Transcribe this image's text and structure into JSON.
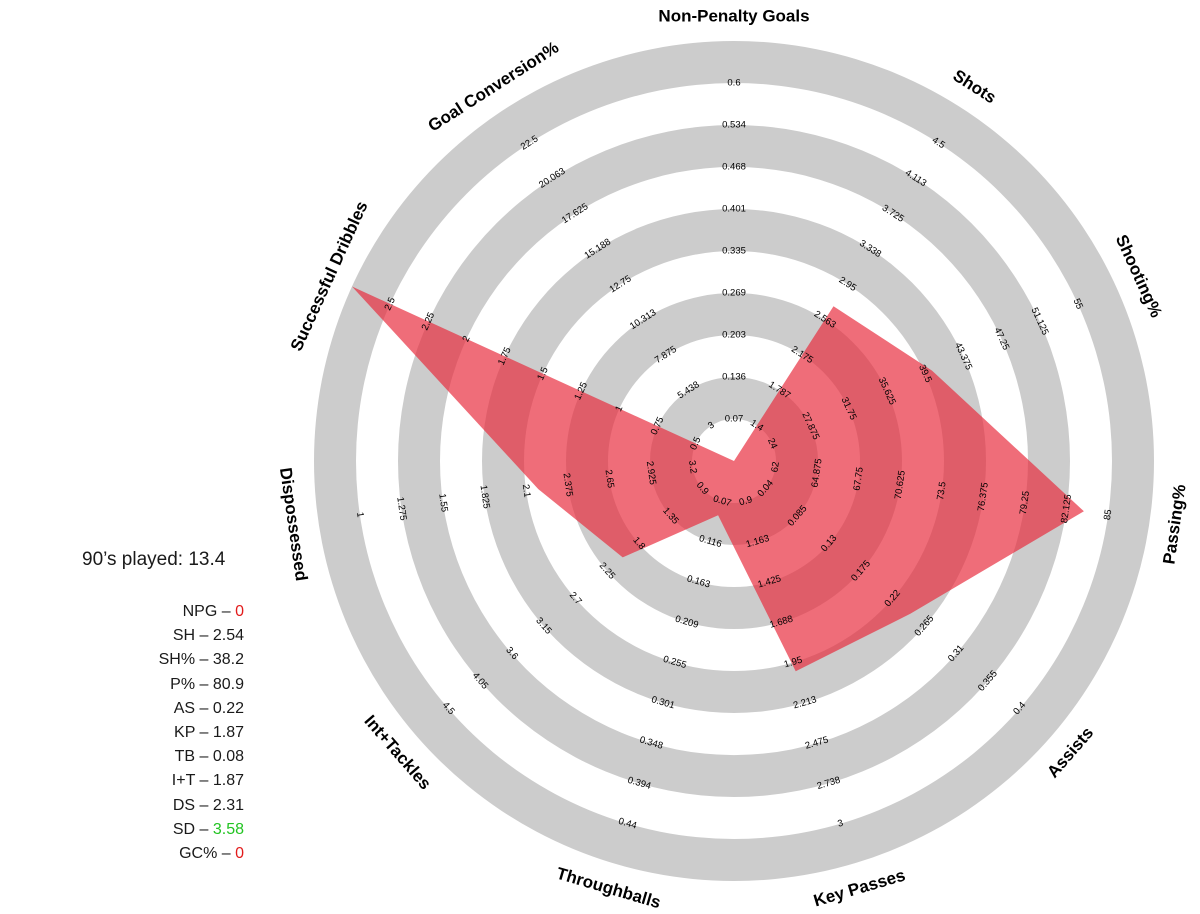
{
  "chart_data": {
    "type": "radar",
    "axes": [
      {
        "name": "Non-Penalty Goals",
        "ticks": [
          "0.07",
          "0.136",
          "0.203",
          "0.269",
          "0.335",
          "0.401",
          "0.468",
          "0.534",
          "0.6"
        ],
        "min": 0.004,
        "max": 0.6,
        "value": 0
      },
      {
        "name": "Shots",
        "ticks": [
          "1.4",
          "1.787",
          "2.175",
          "2.563",
          "2.95",
          "3.338",
          "3.725",
          "4.113",
          "4.5"
        ],
        "min": 1.0125,
        "max": 4.5,
        "value": 2.54
      },
      {
        "name": "Shooting%",
        "ticks": [
          "24",
          "27.875",
          "31.75",
          "35.625",
          "39.5",
          "43.375",
          "47.25",
          "51.125",
          "55"
        ],
        "min": 20.125,
        "max": 55,
        "value": 38.2
      },
      {
        "name": "Passing%",
        "ticks": [
          "62",
          "64.875",
          "67.75",
          "70.625",
          "73.5",
          "76.375",
          "79.25",
          "82.125",
          "85"
        ],
        "min": 59.125,
        "max": 85,
        "value": 80.9
      },
      {
        "name": "Assists",
        "ticks": [
          "0.04",
          "0.085",
          "0.13",
          "0.175",
          "0.22",
          "0.265",
          "0.31",
          "0.355",
          "0.4"
        ],
        "min": -0.005,
        "max": 0.4,
        "value": 0.22
      },
      {
        "name": "Key Passes",
        "ticks": [
          "0.9",
          "1.163",
          "1.425",
          "1.688",
          "1.95",
          "2.213",
          "2.475",
          "2.738",
          "3"
        ],
        "min": 0.6375,
        "max": 3,
        "value": 1.87
      },
      {
        "name": "Throughballs",
        "ticks": [
          "0.07",
          "0.116",
          "0.163",
          "0.209",
          "0.255",
          "0.301",
          "0.348",
          "0.394",
          "0.44"
        ],
        "min": 0.024,
        "max": 0.44,
        "value": 0.08
      },
      {
        "name": "Int+Tackles",
        "ticks": [
          "0.9",
          "1.35",
          "1.8",
          "2.25",
          "2.7",
          "3.15",
          "3.6",
          "4.05",
          "4.5"
        ],
        "min": 0.45,
        "max": 4.5,
        "value": 1.87
      },
      {
        "name": "Dispossessed",
        "ticks": [
          "3.2",
          "2.925",
          "2.65",
          "2.375",
          "2.1",
          "1.825",
          "1.55",
          "1.275",
          "1"
        ],
        "min": 3.475,
        "max": 1,
        "value": 2.31
      },
      {
        "name": "Successful Dribbles",
        "ticks": [
          "0.5",
          "0.75",
          "1",
          "1.25",
          "1.5",
          "1.75",
          "2",
          "2.25",
          "2.5"
        ],
        "min": 0.25,
        "max": 2.5,
        "value": 3.58
      },
      {
        "name": "Goal Conversion%",
        "ticks": [
          "3",
          "5.438",
          "7.875",
          "10.313",
          "12.75",
          "15.188",
          "17.625",
          "20.063",
          "22.5"
        ],
        "min": 0.5625,
        "max": 22.5,
        "value": 0
      }
    ],
    "colors": {
      "fill": "#e8283a",
      "ring": "#cccccc"
    }
  },
  "side_panel": {
    "played": "90’s played: 13.4",
    "stats": [
      {
        "label": "NPG – ",
        "value": "0",
        "color": "#e21b1b"
      },
      {
        "label": "SH – ",
        "value": "2.54",
        "color": "#1a1a1a"
      },
      {
        "label": "SH% – ",
        "value": "38.2",
        "color": "#1a1a1a"
      },
      {
        "label": "P% – ",
        "value": "80.9",
        "color": "#1a1a1a"
      },
      {
        "label": "AS – ",
        "value": "0.22",
        "color": "#1a1a1a"
      },
      {
        "label": "KP – ",
        "value": "1.87",
        "color": "#1a1a1a"
      },
      {
        "label": "TB – ",
        "value": "0.08",
        "color": "#1a1a1a"
      },
      {
        "label": "I+T – ",
        "value": "1.87",
        "color": "#1a1a1a"
      },
      {
        "label": "DS – ",
        "value": "2.31",
        "color": "#1a1a1a"
      },
      {
        "label": "SD – ",
        "value": "3.58",
        "color": "#22c422"
      },
      {
        "label": "GC% – ",
        "value": "0",
        "color": "#e21b1b"
      }
    ]
  }
}
